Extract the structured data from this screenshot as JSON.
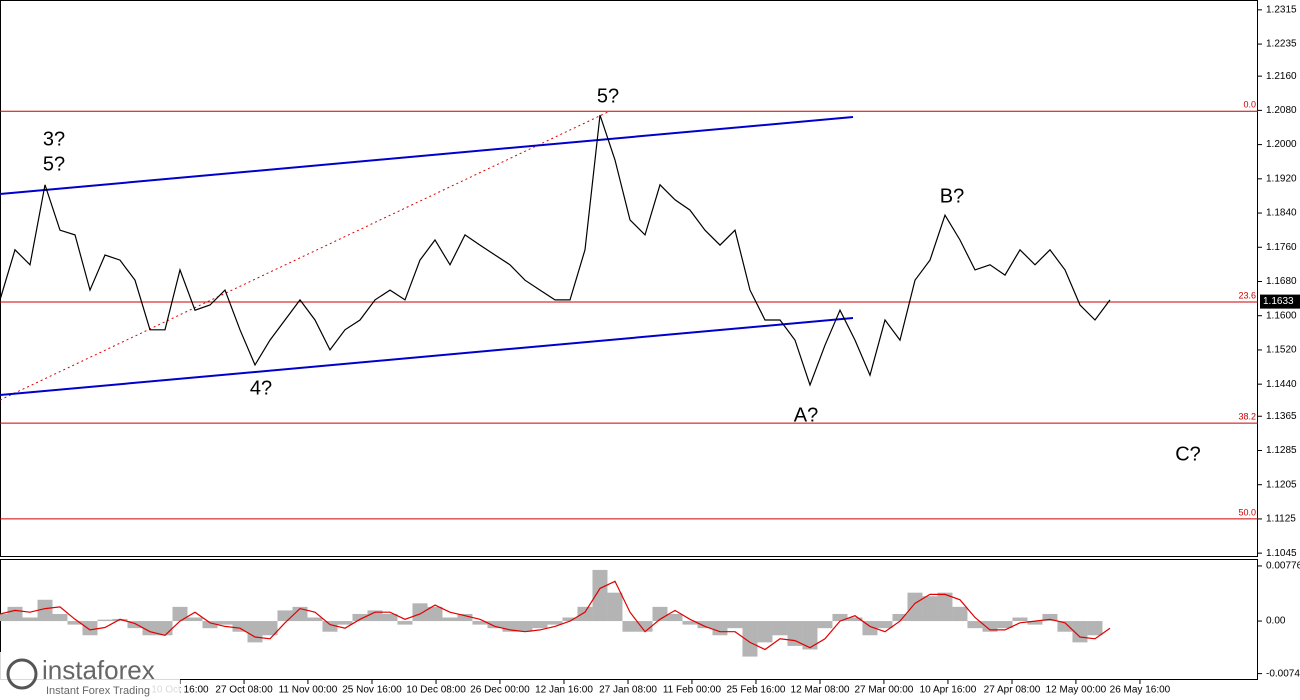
{
  "chart_data": [
    {
      "type": "line",
      "values": [
        1.1637,
        1.1754,
        1.1719,
        1.1906,
        1.18,
        1.1789,
        1.166,
        1.1742,
        1.173,
        1.1683,
        1.1567,
        1.1567,
        1.1707,
        1.1613,
        1.1625,
        1.166,
        1.1567,
        1.1485,
        1.1543,
        1.159,
        1.1637,
        1.159,
        1.152,
        1.1567,
        1.159,
        1.1637,
        1.166,
        1.1637,
        1.173,
        1.1777,
        1.1719,
        1.1789,
        1.1765,
        1.1742,
        1.1719,
        1.1683,
        1.166,
        1.1637,
        1.1637,
        1.1754,
        1.2069,
        1.1964,
        1.1824,
        1.1789,
        1.1906,
        1.1871,
        1.1847,
        1.18,
        1.1765,
        1.18,
        1.166,
        1.159,
        1.159,
        1.1543,
        1.1438,
        1.1531,
        1.1613,
        1.1543,
        1.1461,
        1.159,
        1.1543,
        1.1683,
        1.173,
        1.1835,
        1.1777,
        1.1707,
        1.1719,
        1.1695,
        1.1754,
        1.1719,
        1.1754,
        1.1707,
        1.1625,
        1.159,
        1.1637
      ],
      "color": "#000000",
      "xlim": [
        0,
        83.87
      ],
      "xticks": [
        {
          "value": 12,
          "label": "10 Oct 16:00"
        },
        {
          "value": 16.27,
          "label": "27 Oct 08:00"
        },
        {
          "value": 20.53,
          "label": "11 Nov 00:00"
        },
        {
          "value": 24.8,
          "label": "25 Nov 16:00"
        },
        {
          "value": 29.07,
          "label": "10 Dec 08:00"
        },
        {
          "value": 33.33,
          "label": "26 Dec 00:00"
        },
        {
          "value": 37.6,
          "label": "12 Jan 16:00"
        },
        {
          "value": 41.87,
          "label": "27 Jan 08:00"
        },
        {
          "value": 46.13,
          "label": "11 Feb 00:00"
        },
        {
          "value": 50.4,
          "label": "25 Feb 16:00"
        },
        {
          "value": 54.67,
          "label": "12 Mar 08:00"
        },
        {
          "value": 58.93,
          "label": "27 Mar 00:00"
        },
        {
          "value": 63.2,
          "label": "10 Apr 16:00"
        },
        {
          "value": 67.47,
          "label": "27 Apr 08:00"
        },
        {
          "value": 71.73,
          "label": "12 May 00:00"
        },
        {
          "value": 76,
          "label": "26 May 16:00"
        }
      ],
      "ylim": [
        1.1036,
        1.2338
      ],
      "yticks": [
        1.2315,
        1.2235,
        {
          "value": 1.216,
          "label": "1.2160"
        },
        {
          "value": 1.208,
          "label": "1.2080"
        },
        {
          "value": 1.2,
          "label": "1.2000"
        },
        {
          "value": 1.192,
          "label": "1.1920"
        },
        {
          "value": 1.184,
          "label": "1.1840"
        },
        {
          "value": 1.176,
          "label": "1.1760"
        },
        {
          "value": 1.168,
          "label": "1.1680"
        },
        {
          "value": 1.16,
          "label": "1.1600"
        },
        {
          "value": 1.152,
          "label": "1.1520"
        },
        {
          "value": 1.144,
          "label": "1.1440"
        },
        1.1365,
        1.1285,
        1.1205,
        1.1125,
        1.1045
      ],
      "levels": [
        {
          "value": 1.2078,
          "label": "0.0"
        },
        {
          "value": 1.1632,
          "label": "23.6"
        },
        {
          "value": 1.1349,
          "label": "38.2"
        },
        {
          "value": 1.1125,
          "label": "50.0"
        }
      ],
      "level_color": "#cc0000",
      "last_price": 1.1633,
      "annotations": [
        {
          "text": "3?",
          "color": "#e00000"
        },
        {
          "text": "5?",
          "color": "#0000e0"
        },
        {
          "text": "4?",
          "color": "#e00000"
        },
        {
          "text": "5?",
          "color": "#e00000"
        },
        {
          "text": "A?",
          "color": "#e00000"
        },
        {
          "text": "B?",
          "color": "#e00000"
        },
        {
          "text": "C?",
          "color": "#e00000"
        }
      ]
    },
    {
      "type": "oscillator",
      "values": [
        0.001,
        0.002,
        0.0005,
        0.003,
        0.001,
        -0.0005,
        -0.002,
        0.0002,
        0.0003,
        -0.001,
        -0.002,
        -0.002,
        0.002,
        0.0005,
        -0.001,
        -0.0005,
        -0.0015,
        -0.003,
        -0.002,
        0.0015,
        0.002,
        0.0005,
        -0.0015,
        -0.0005,
        0.001,
        0.0015,
        0.001,
        -0.0005,
        0.0025,
        0.002,
        0.0005,
        0.001,
        -0.0005,
        -0.001,
        -0.0015,
        -0.0015,
        -0.001,
        -0.0005,
        0.0005,
        0.002,
        0.0072,
        0.004,
        -0.0015,
        -0.0015,
        0.002,
        0.001,
        -0.0005,
        -0.001,
        -0.002,
        -0.001,
        -0.005,
        -0.003,
        -0.002,
        -0.0035,
        -0.004,
        -0.001,
        0.001,
        0.0005,
        -0.002,
        -0.001,
        0.001,
        0.004,
        0.0035,
        0.004,
        0.002,
        -0.001,
        -0.0015,
        -0.001,
        0.0005,
        -0.0005,
        0.001,
        -0.0015,
        -0.003,
        -0.002,
        0
      ],
      "color": "#b4b4b4",
      "signal": [
        0.001,
        0.0015,
        0.00125,
        0.00175,
        0.002,
        0.00025,
        -0.00125,
        -0.0009,
        0.00025,
        -0.00035,
        -0.0015,
        -0.002,
        0,
        0.00125,
        -0.00025,
        -0.00075,
        -0.001,
        -0.00225,
        -0.0025,
        -0.00025,
        0.00175,
        0.00125,
        -0.0005,
        -0.001,
        0.00025,
        0.00125,
        0.00125,
        0.00025,
        0.001,
        0.00225,
        0.00125,
        0.00075,
        0.00025,
        -0.00075,
        -0.00125,
        -0.0015,
        -0.00125,
        -0.00075,
        0,
        0.00125,
        0.0046,
        0.0056,
        0.00125,
        -0.0015,
        0.00025,
        0.0015,
        0.00025,
        -0.00075,
        -0.0015,
        -0.0015,
        -0.003,
        -0.004,
        -0.0025,
        -0.00275,
        -0.00375,
        -0.0025,
        0,
        0.00075,
        -0.00075,
        -0.0015,
        0,
        0.0025,
        0.00375,
        0.00375,
        0.003,
        0.0005,
        -0.00125,
        -0.00125,
        -0.00025,
        0,
        0.00025,
        -0.00025,
        -0.00225,
        -0.0025,
        -0.001
      ],
      "signal_color": "#e00000",
      "xlim": [
        0,
        83.87
      ],
      "ylim": [
        -0.0083,
        0.0086
      ],
      "yticks": [
        0.00776,
        {
          "value": 0,
          "label": "0.00"
        },
        -0.0074
      ]
    }
  ],
  "logo": {
    "name": "instaforex",
    "tagline": "Instant Forex Trading"
  }
}
